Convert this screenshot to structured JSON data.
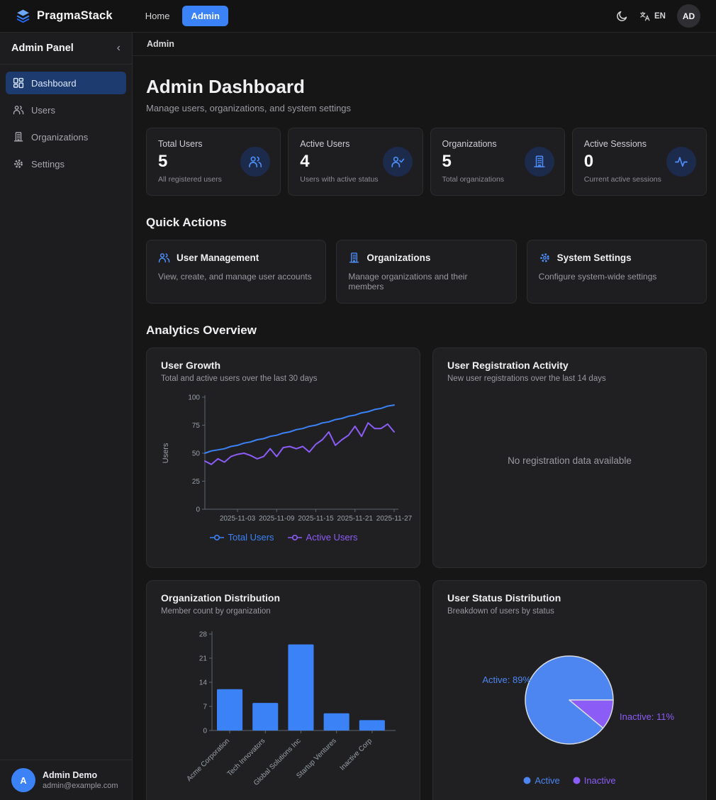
{
  "navbar": {
    "brand": "PragmaStack",
    "links": [
      {
        "label": "Home",
        "active": false
      },
      {
        "label": "Admin",
        "active": true
      }
    ],
    "language": "EN",
    "avatar_initials": "AD",
    "icons": [
      "layers-logo-icon",
      "moon-icon",
      "translate-icon"
    ]
  },
  "sidebar": {
    "title": "Admin Panel",
    "collapse_icon": "‹",
    "items": [
      {
        "label": "Dashboard",
        "icon": "dashboard-grid-icon",
        "active": true
      },
      {
        "label": "Users",
        "icon": "users-icon",
        "active": false
      },
      {
        "label": "Organizations",
        "icon": "building-icon",
        "active": false
      },
      {
        "label": "Settings",
        "icon": "gear-icon",
        "active": false
      }
    ],
    "user": {
      "initial": "A",
      "name": "Admin Demo",
      "email": "admin@example.com"
    }
  },
  "breadcrumb": "Admin",
  "header": {
    "title": "Admin Dashboard",
    "subtitle": "Manage users, organizations, and system settings"
  },
  "stats": [
    {
      "label": "Total Users",
      "value": "5",
      "description": "All registered users",
      "icon": "users-icon"
    },
    {
      "label": "Active Users",
      "value": "4",
      "description": "Users with active status",
      "icon": "user-check-icon"
    },
    {
      "label": "Organizations",
      "value": "5",
      "description": "Total organizations",
      "icon": "building-icon"
    },
    {
      "label": "Active Sessions",
      "value": "0",
      "description": "Current active sessions",
      "icon": "activity-icon"
    }
  ],
  "quick_actions": {
    "heading": "Quick Actions",
    "cards": [
      {
        "title": "User Management",
        "description": "View, create, and manage user accounts",
        "icon": "users-icon"
      },
      {
        "title": "Organizations",
        "description": "Manage organizations and their members",
        "icon": "building-icon"
      },
      {
        "title": "System Settings",
        "description": "Configure system-wide settings",
        "icon": "gear-icon"
      }
    ]
  },
  "analytics_heading": "Analytics Overview",
  "colors": {
    "accent_blue": "#3b82f6",
    "accent_purple": "#8b5cf6",
    "active_nav_bg": "#1d3b6f",
    "card_bg": "#202022",
    "page_bg": "#161616"
  },
  "chart_data": [
    {
      "type": "line",
      "title": "User Growth",
      "subtitle": "Total and active users over the last 30 days",
      "ylabel": "Users",
      "ylim": [
        0,
        100
      ],
      "yticks": [
        0,
        25,
        50,
        75,
        100
      ],
      "grid": false,
      "legend_position": "bottom",
      "x": [
        "2025-10-29",
        "2025-10-30",
        "2025-10-31",
        "2025-11-01",
        "2025-11-02",
        "2025-11-03",
        "2025-11-04",
        "2025-11-05",
        "2025-11-06",
        "2025-11-07",
        "2025-11-08",
        "2025-11-09",
        "2025-11-10",
        "2025-11-11",
        "2025-11-12",
        "2025-11-13",
        "2025-11-14",
        "2025-11-15",
        "2025-11-16",
        "2025-11-17",
        "2025-11-18",
        "2025-11-19",
        "2025-11-20",
        "2025-11-21",
        "2025-11-22",
        "2025-11-23",
        "2025-11-24",
        "2025-11-25",
        "2025-11-26",
        "2025-11-27"
      ],
      "xticks": [
        "2025-11-03",
        "2025-11-09",
        "2025-11-15",
        "2025-11-21",
        "2025-11-27"
      ],
      "series": [
        {
          "name": "Total Users",
          "color": "#3b82f6",
          "values": [
            50,
            52,
            53,
            54,
            56,
            57,
            59,
            60,
            62,
            63,
            65,
            66,
            68,
            69,
            71,
            72,
            74,
            75,
            77,
            78,
            80,
            81,
            83,
            84,
            86,
            87,
            89,
            90,
            92,
            93
          ]
        },
        {
          "name": "Active Users",
          "color": "#8b5cf6",
          "values": [
            43,
            40,
            45,
            42,
            47,
            49,
            50,
            48,
            45,
            47,
            54,
            47,
            55,
            56,
            54,
            56,
            51,
            58,
            62,
            69,
            57,
            62,
            66,
            74,
            65,
            77,
            72,
            72,
            76,
            69
          ]
        }
      ]
    },
    {
      "type": "line",
      "title": "User Registration Activity",
      "subtitle": "New user registrations over the last 14 days",
      "empty_message": "No registration data available",
      "x": [],
      "values": []
    },
    {
      "type": "bar",
      "title": "Organization Distribution",
      "subtitle": "Member count by organization",
      "categories": [
        "Acme Corporation",
        "Tech Innovators",
        "Global Solutions Inc",
        "Startup Ventures",
        "Inactive Corp"
      ],
      "values": [
        12,
        8,
        25,
        5,
        3
      ],
      "ylim": [
        0,
        28
      ],
      "yticks": [
        0,
        7,
        14,
        21,
        28
      ],
      "bar_color": "#3b82f6"
    },
    {
      "type": "pie",
      "title": "User Status Distribution",
      "subtitle": "Breakdown of users by status",
      "slices": [
        {
          "label": "Active",
          "pct": 89,
          "color": "#4d86f0",
          "callout": "Active: 89%"
        },
        {
          "label": "Inactive",
          "pct": 11,
          "color": "#8b5cf6",
          "callout": "Inactive: 11%"
        }
      ]
    }
  ]
}
